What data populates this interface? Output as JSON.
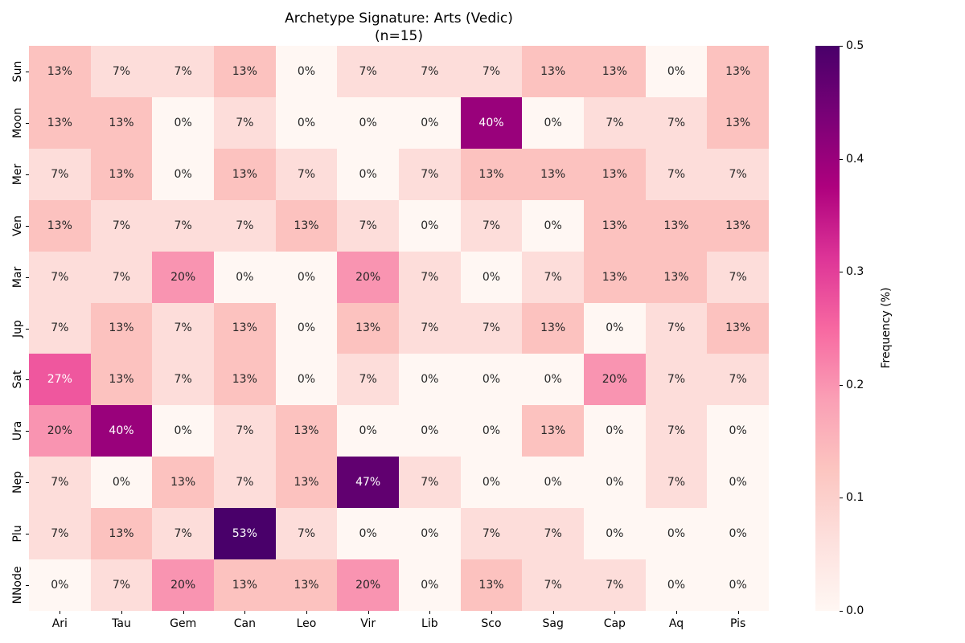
{
  "figure": {
    "title": "Archetype Signature: Arts (Vedic)",
    "subtitle": "(n=15)"
  },
  "chart_data": {
    "type": "heatmap",
    "title": "Archetype Signature: Arts (Vedic)",
    "subtitle": "(n=15)",
    "rows": [
      "Sun",
      "Moon",
      "Mer",
      "Ven",
      "Mar",
      "Jup",
      "Sat",
      "Ura",
      "Nep",
      "Plu",
      "NNode"
    ],
    "columns": [
      "Ari",
      "Tau",
      "Gem",
      "Can",
      "Leo",
      "Vir",
      "Lib",
      "Sco",
      "Sag",
      "Cap",
      "Aq",
      "Pis"
    ],
    "values_pct": [
      [
        13,
        7,
        7,
        13,
        0,
        7,
        7,
        7,
        13,
        13,
        0,
        13
      ],
      [
        13,
        13,
        0,
        7,
        0,
        0,
        0,
        40,
        0,
        7,
        7,
        13
      ],
      [
        7,
        13,
        0,
        13,
        7,
        0,
        7,
        13,
        13,
        13,
        7,
        7
      ],
      [
        13,
        7,
        7,
        7,
        13,
        7,
        0,
        7,
        0,
        13,
        13,
        13
      ],
      [
        7,
        7,
        20,
        0,
        0,
        20,
        7,
        0,
        7,
        13,
        13,
        7
      ],
      [
        7,
        13,
        7,
        13,
        0,
        13,
        7,
        7,
        13,
        0,
        7,
        13
      ],
      [
        27,
        13,
        7,
        13,
        0,
        7,
        0,
        0,
        0,
        20,
        7,
        7
      ],
      [
        20,
        40,
        0,
        7,
        13,
        0,
        0,
        0,
        13,
        0,
        7,
        0
      ],
      [
        7,
        0,
        13,
        7,
        13,
        47,
        7,
        0,
        0,
        0,
        7,
        0
      ],
      [
        7,
        13,
        7,
        53,
        7,
        0,
        0,
        7,
        7,
        0,
        0,
        0
      ],
      [
        0,
        7,
        20,
        13,
        13,
        20,
        0,
        13,
        7,
        7,
        0,
        0
      ]
    ],
    "annotation_format": "percent",
    "annotation_colors": {
      "dark": "#262626",
      "light": "#ffffff"
    },
    "background": "#ffffff",
    "colormap": {
      "name": "RdPu",
      "stops": [
        "#fff7f3",
        "#fde0dd",
        "#fcc5c0",
        "#fa9fb5",
        "#f768a1",
        "#dd3497",
        "#ae017e",
        "#7a0177",
        "#49006a"
      ]
    },
    "colorbar": {
      "label": "Frequency (%)",
      "tick_labels": [
        "0.0",
        "0.1",
        "0.2",
        "0.3",
        "0.4",
        "0.5"
      ],
      "tick_values": [
        0.0,
        0.1,
        0.2,
        0.3,
        0.4,
        0.5
      ],
      "vmin": 0.0,
      "vmax": 0.5,
      "position": "right",
      "grid_on": false,
      "legend_position": "none"
    }
  }
}
